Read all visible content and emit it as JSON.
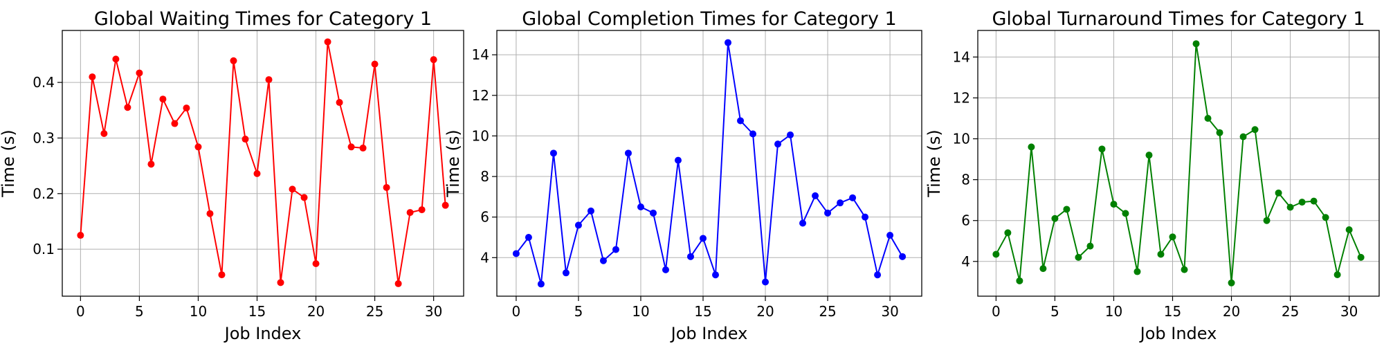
{
  "chart_data": [
    {
      "type": "line",
      "title": "Global Waiting Times for Category 1",
      "xlabel": "Job Index",
      "ylabel": "Time (s)",
      "xlim": [
        -1.55,
        32.55
      ],
      "ylim": [
        0.0155,
        0.4935
      ],
      "xticks": [
        0,
        5,
        10,
        15,
        20,
        25,
        30
      ],
      "yticks": [
        0.1,
        0.2,
        0.3,
        0.4
      ],
      "grid": true,
      "color": "#ff0000",
      "series": [
        {
          "x": [
            0,
            1,
            2,
            3,
            4,
            5,
            6,
            7,
            8,
            9,
            10,
            11,
            12,
            13,
            14,
            15,
            16,
            17,
            18,
            19,
            20,
            21,
            22,
            23,
            24,
            25,
            26,
            27,
            28,
            29,
            30,
            31
          ],
          "values": [
            0.125,
            0.41,
            0.308,
            0.442,
            0.355,
            0.417,
            0.253,
            0.37,
            0.326,
            0.354,
            0.284,
            0.164,
            0.054,
            0.439,
            0.298,
            0.236,
            0.405,
            0.04,
            0.208,
            0.193,
            0.074,
            0.473,
            0.364,
            0.284,
            0.282,
            0.433,
            0.211,
            0.038,
            0.166,
            0.171,
            0.441,
            0.179
          ]
        }
      ]
    },
    {
      "type": "line",
      "title": "Global Completion Times for Category 1",
      "xlabel": "Job Index",
      "ylabel": "Time (s)",
      "xlim": [
        -1.55,
        32.55
      ],
      "ylim": [
        2.1,
        15.2
      ],
      "xticks": [
        0,
        5,
        10,
        15,
        20,
        25,
        30
      ],
      "yticks": [
        4,
        6,
        8,
        10,
        12,
        14
      ],
      "grid": true,
      "color": "#0000ff",
      "series": [
        {
          "x": [
            0,
            1,
            2,
            3,
            4,
            5,
            6,
            7,
            8,
            9,
            10,
            11,
            12,
            13,
            14,
            15,
            16,
            17,
            18,
            19,
            20,
            21,
            22,
            23,
            24,
            25,
            26,
            27,
            28,
            29,
            30,
            31
          ],
          "values": [
            4.2,
            5.0,
            2.7,
            9.15,
            3.25,
            5.6,
            6.3,
            3.85,
            4.4,
            9.15,
            6.5,
            6.2,
            3.4,
            8.8,
            4.05,
            4.95,
            3.15,
            14.6,
            10.75,
            10.1,
            2.8,
            9.6,
            10.05,
            5.7,
            7.05,
            6.2,
            6.7,
            6.95,
            6.0,
            3.15,
            5.1,
            4.05
          ]
        }
      ]
    },
    {
      "type": "line",
      "title": "Global Turnaround Times for Category 1",
      "xlabel": "Job Index",
      "ylabel": "Time (s)",
      "xlim": [
        -1.55,
        32.55
      ],
      "ylim": [
        2.3,
        15.3
      ],
      "xticks": [
        0,
        5,
        10,
        15,
        20,
        25,
        30
      ],
      "yticks": [
        4,
        6,
        8,
        10,
        12,
        14
      ],
      "grid": true,
      "color": "#008000",
      "series": [
        {
          "x": [
            0,
            1,
            2,
            3,
            4,
            5,
            6,
            7,
            8,
            9,
            10,
            11,
            12,
            13,
            14,
            15,
            16,
            17,
            18,
            19,
            20,
            21,
            22,
            23,
            24,
            25,
            26,
            27,
            28,
            29,
            30,
            31
          ],
          "values": [
            4.35,
            5.4,
            3.05,
            9.6,
            3.65,
            6.1,
            6.55,
            4.2,
            4.75,
            9.5,
            6.8,
            6.35,
            3.5,
            9.2,
            4.35,
            5.2,
            3.6,
            14.65,
            11.0,
            10.3,
            2.95,
            10.1,
            10.45,
            6.0,
            7.35,
            6.65,
            6.9,
            6.95,
            6.15,
            3.35,
            5.55,
            4.2
          ]
        }
      ]
    }
  ]
}
